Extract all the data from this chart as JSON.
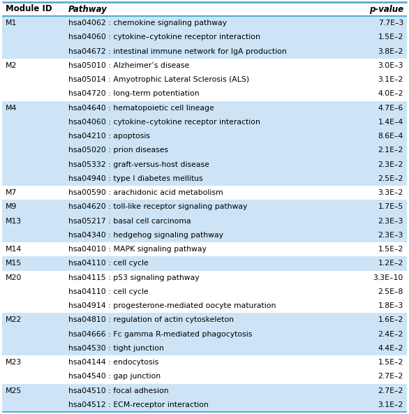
{
  "headers": [
    "Module ID",
    "Pathway",
    "p-value"
  ],
  "rows": [
    [
      "M1",
      "hsa04062 : chemokine signaling pathway",
      "7.7E–3"
    ],
    [
      "",
      "hsa04060 : cytokine–cytokine receptor interaction",
      "1.5E–2"
    ],
    [
      "",
      "hsa04672 : intestinal immune network for IgA production",
      "3.8E–2"
    ],
    [
      "M2",
      "hsa05010 : Alzheimer’s disease",
      "3.0E–3"
    ],
    [
      "",
      "hsa05014 : Amyotrophic Lateral Sclerosis (ALS)",
      "3.1E–2"
    ],
    [
      "",
      "hsa04720 : long-term potentiation",
      "4.0E–2"
    ],
    [
      "M4",
      "hsa04640 : hematopoietic cell lineage",
      "4.7E–6"
    ],
    [
      "",
      "hsa04060 : cytokine–cytokine receptor interaction",
      "1.4E–4"
    ],
    [
      "",
      "hsa04210 : apoptosis",
      "8.6E–4"
    ],
    [
      "",
      "hsa05020 : prion diseases",
      "2.1E–2"
    ],
    [
      "",
      "hsa05332 : graft-versus-host disease",
      "2.3E–2"
    ],
    [
      "",
      "hsa04940 : type I diabetes mellitus",
      "2.5E–2"
    ],
    [
      "M7",
      "hsa00590 : arachidonic acid metabolism",
      "3.3E–2"
    ],
    [
      "M9",
      "hsa04620 : toll-like receptor signaling pathway",
      "1.7E–5"
    ],
    [
      "M13",
      "hsa05217 : basal cell carcinoma",
      "2.3E–3"
    ],
    [
      "",
      "hsa04340 : hedgehog signaling pathway",
      "2.3E–3"
    ],
    [
      "M14",
      "hsa04010 : MAPK signaling pathway",
      "1.5E–2"
    ],
    [
      "M15",
      "hsa04110 : cell cycle",
      "1.2E–2"
    ],
    [
      "M20",
      "hsa04115 : p53 signaling pathway",
      "3.3E–10"
    ],
    [
      "",
      "hsa04110 : cell cycle",
      "2.5E–8"
    ],
    [
      "",
      "hsa04914 : progesterone-mediated oocyte maturation",
      "1.8E–3"
    ],
    [
      "M22",
      "hsa04810 : regulation of actin cytoskeleton",
      "1.6E–2"
    ],
    [
      "",
      "hsa04666 : Fc gamma R-mediated phagocytosis",
      "2.4E–2"
    ],
    [
      "",
      "hsa04530 : tight junction",
      "4.4E–2"
    ],
    [
      "M23",
      "hsa04144 : endocytosis",
      "1.5E–2"
    ],
    [
      "",
      "hsa04540 : gap junction",
      "2.7E–2"
    ],
    [
      "M25",
      "hsa04510 : focal adhesion",
      "2.7E–2"
    ],
    [
      "",
      "hsa04512 : ECM-receptor interaction",
      "3.1E–2"
    ]
  ],
  "module_groups": [
    [
      0,
      2,
      "blue"
    ],
    [
      3,
      5,
      "white"
    ],
    [
      6,
      11,
      "blue"
    ],
    [
      12,
      12,
      "white"
    ],
    [
      13,
      15,
      "blue"
    ],
    [
      16,
      16,
      "white"
    ],
    [
      17,
      17,
      "blue"
    ],
    [
      18,
      20,
      "white"
    ],
    [
      21,
      23,
      "blue"
    ],
    [
      24,
      25,
      "white"
    ],
    [
      26,
      27,
      "blue"
    ]
  ],
  "blue_bg_color": "#cce4f6",
  "white_bg_color": "#ffffff",
  "header_bg_color": "#ffffff",
  "header_text_color": "#000000",
  "border_color": "#5baad4",
  "header_border_color": "#5baad4"
}
